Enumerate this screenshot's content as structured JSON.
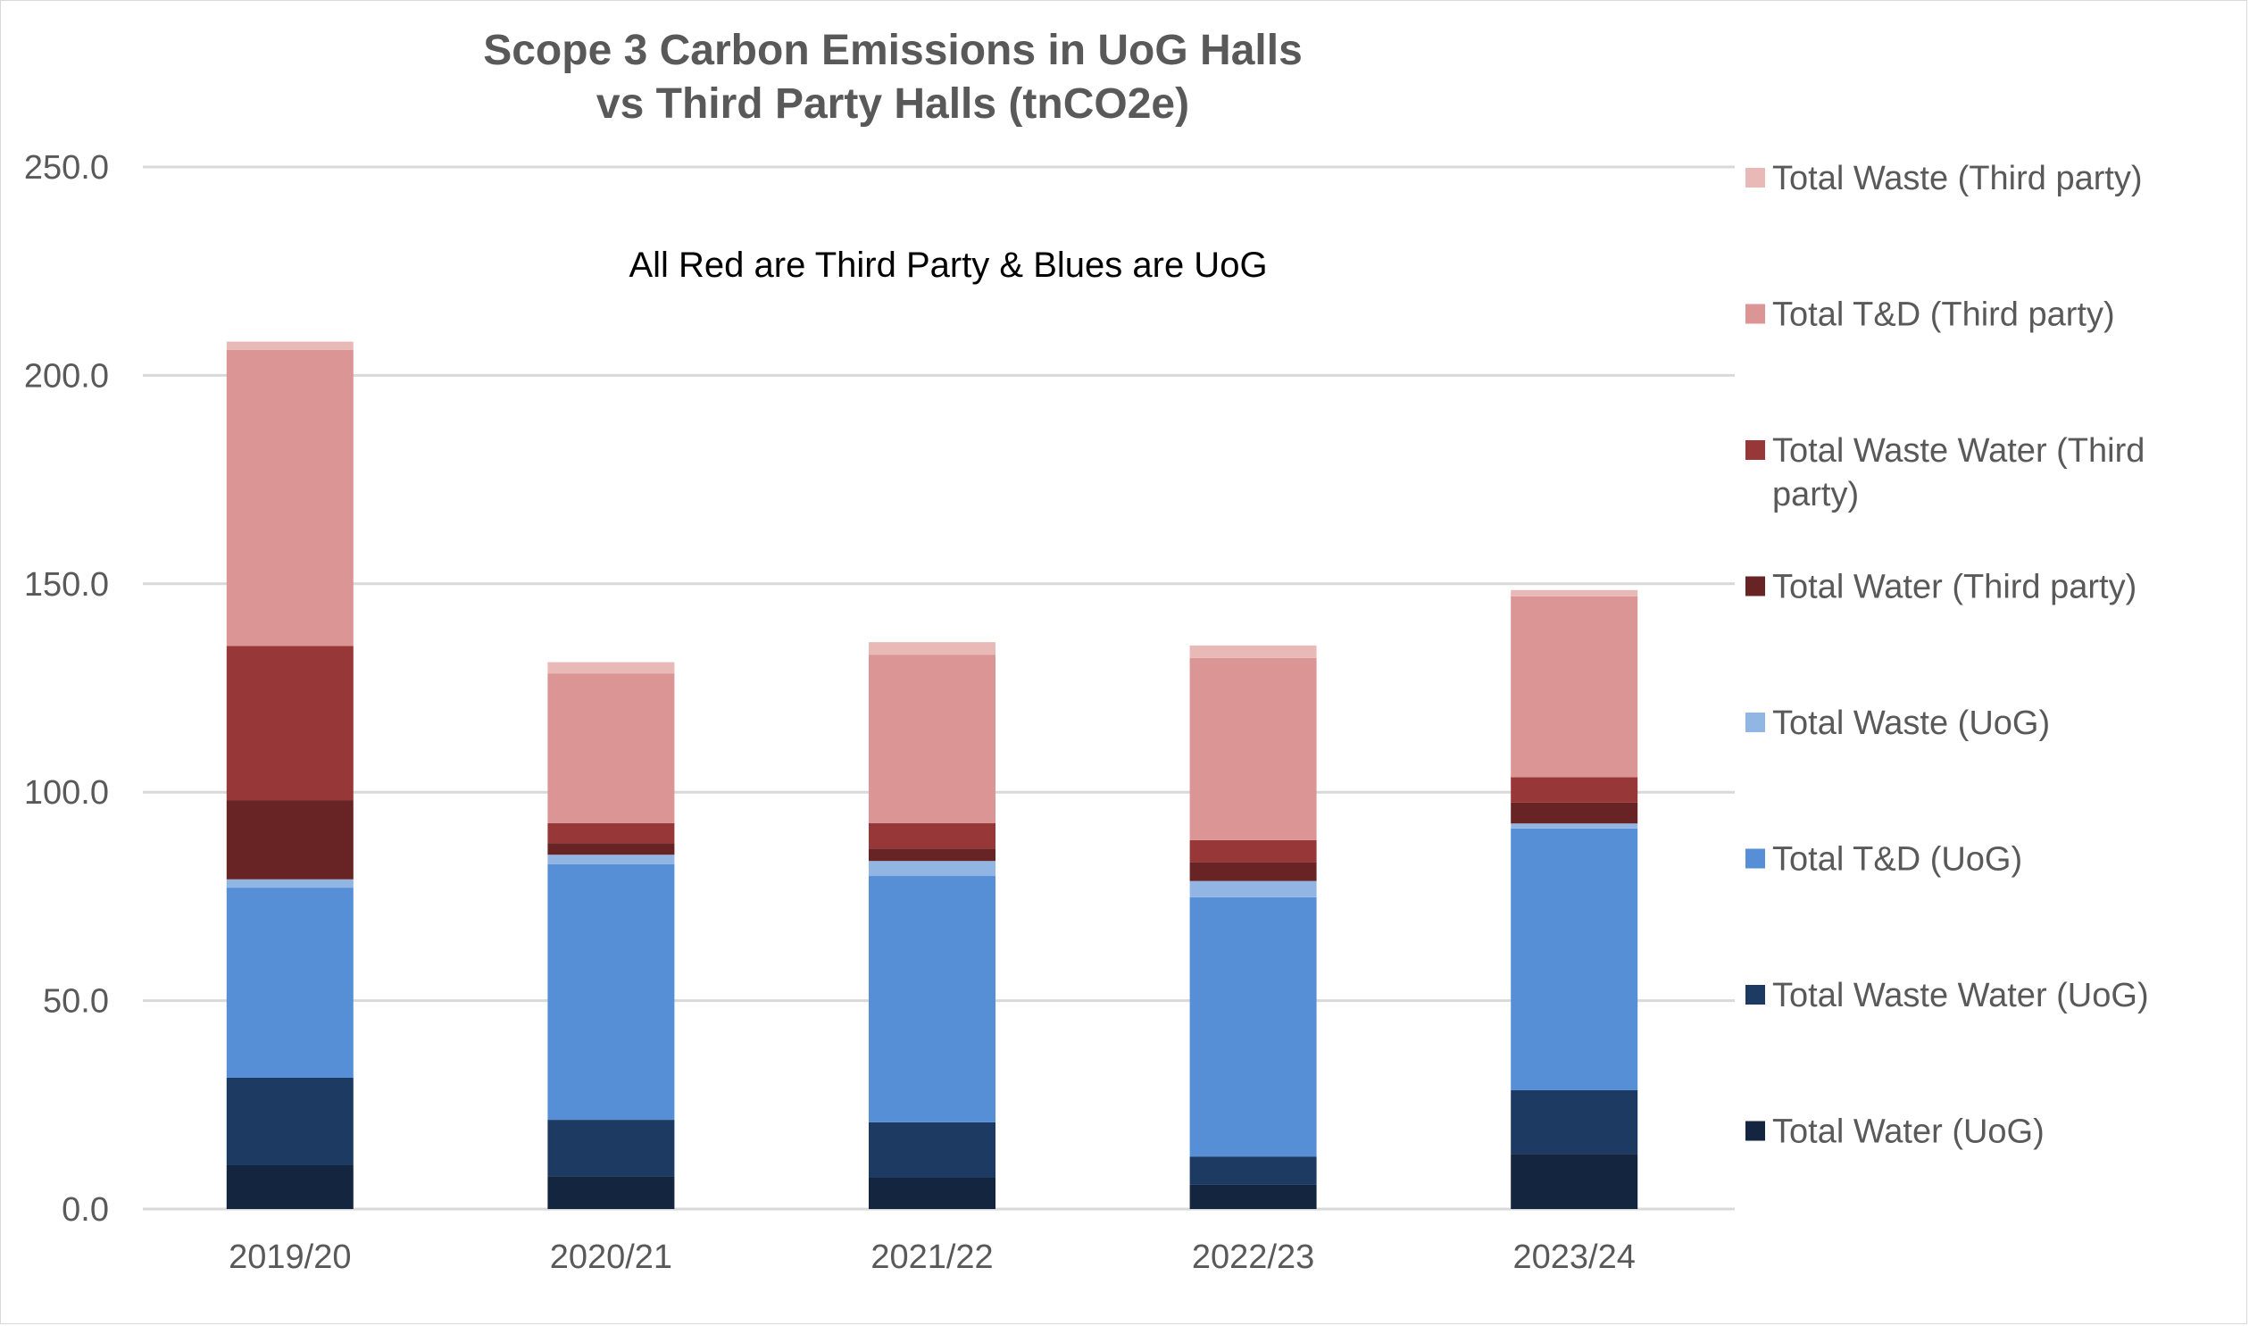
{
  "chart_data": {
    "type": "bar",
    "stacked": true,
    "title": [
      "Scope 3 Carbon Emissions in UoG Halls",
      "vs Third Party Halls (tnCO2e)"
    ],
    "annotation": "All Red are Third Party & Blues are UoG",
    "xlabel": "",
    "ylabel": "",
    "ylim": [
      0,
      250
    ],
    "yticks": [
      "0.0",
      "50.0",
      "100.0",
      "150.0",
      "200.0",
      "250.0"
    ],
    "grid": true,
    "legend_position": "right",
    "categories": [
      "2019/20",
      "2020/21",
      "2021/22",
      "2022/23",
      "2023/24"
    ],
    "series": [
      {
        "name": "Total Water (UoG)",
        "color": "#14253f",
        "values": [
          10.5,
          7.8,
          7.5,
          5.8,
          13.2
        ]
      },
      {
        "name": "Total Waste Water (UoG)",
        "color": "#1c3a62",
        "values": [
          21.0,
          13.6,
          13.3,
          6.8,
          15.3
        ]
      },
      {
        "name": "Total T&D (UoG)",
        "color": "#568fd6",
        "values": [
          45.6,
          61.3,
          59.1,
          62.2,
          62.8
        ]
      },
      {
        "name": "Total Waste (UoG)",
        "color": "#92b6e3",
        "values": [
          2.0,
          2.3,
          3.6,
          3.9,
          1.2
        ]
      },
      {
        "name": "Total Water (Third party)",
        "color": "#682424",
        "values": [
          19.0,
          2.8,
          3.0,
          4.5,
          5.0
        ]
      },
      {
        "name": "Total Waste Water (Third party)",
        "color": "#983738",
        "values": [
          37.0,
          4.8,
          6.1,
          5.3,
          6.1
        ]
      },
      {
        "name": "Total T&D (Third party)",
        "color": "#da9594",
        "values": [
          71.0,
          35.9,
          40.4,
          43.7,
          43.4
        ]
      },
      {
        "name": "Total Waste (Third party)",
        "color": "#e9b9b8",
        "values": [
          2.0,
          2.7,
          3.0,
          3.0,
          1.5
        ]
      }
    ],
    "legend_order": [
      {
        "label": [
          "Total Waste (Third party)"
        ],
        "color": "#e9b9b8"
      },
      {
        "label": [
          "Total T&D (Third party)"
        ],
        "color": "#da9594"
      },
      {
        "label": [
          "Total Waste Water (Third",
          "party)"
        ],
        "color": "#983738"
      },
      {
        "label": [
          "Total Water (Third party)"
        ],
        "color": "#682424"
      },
      {
        "label": [
          "Total Waste (UoG)"
        ],
        "color": "#92b6e3"
      },
      {
        "label": [
          "Total T&D (UoG)"
        ],
        "color": "#568fd6"
      },
      {
        "label": [
          "Total Waste Water (UoG)"
        ],
        "color": "#1c3a62"
      },
      {
        "label": [
          "Total Water (UoG)"
        ],
        "color": "#14253f"
      }
    ]
  }
}
